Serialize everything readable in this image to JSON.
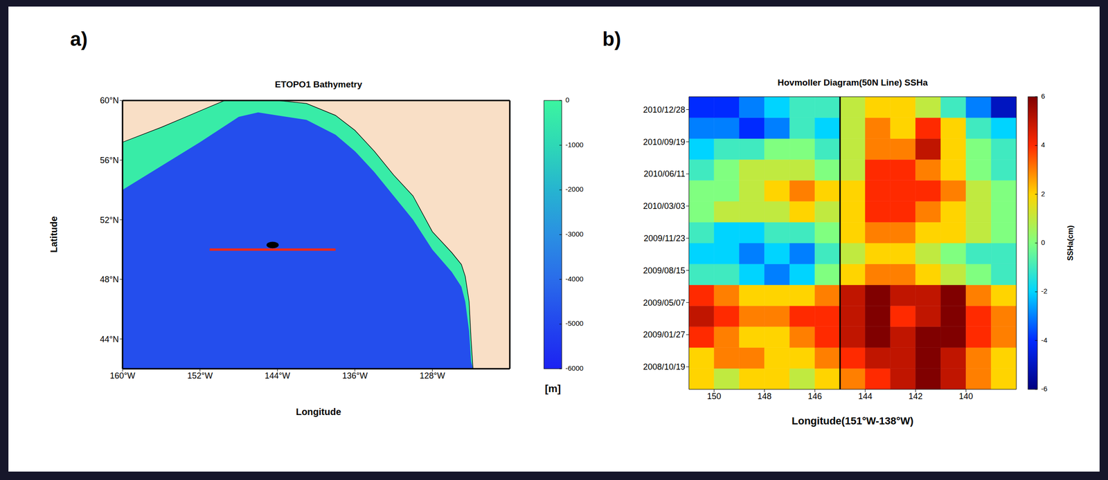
{
  "chart_data": [
    {
      "panel": "a)",
      "type": "map",
      "title": "ETOPO1 Bathymetry",
      "xlabel": "Longitude",
      "ylabel": "Latitude",
      "xlim": [
        -160,
        -120
      ],
      "ylim": [
        42,
        60
      ],
      "xticks": [
        {
          "value": -160,
          "label": "160°W"
        },
        {
          "value": -152,
          "label": "152°W"
        },
        {
          "value": -144,
          "label": "144°W"
        },
        {
          "value": -136,
          "label": "136°W"
        },
        {
          "value": -128,
          "label": "128°W"
        }
      ],
      "yticks": [
        {
          "value": 44,
          "label": "44°N"
        },
        {
          "value": 48,
          "label": "48°N"
        },
        {
          "value": 52,
          "label": "52°N"
        },
        {
          "value": 56,
          "label": "56°N"
        },
        {
          "value": 60,
          "label": "60°N"
        }
      ],
      "coast": {
        "lon": [
          -160,
          -156,
          -152,
          -148,
          -146,
          -144,
          -141,
          -138,
          -136,
          -134,
          -132,
          -130,
          -128,
          -126,
          -125,
          -124.6,
          -124.2,
          -124,
          -123.8,
          -120
        ],
        "land_lat": [
          57.2,
          58.2,
          59.3,
          60.4,
          60.4,
          60.0,
          59.8,
          59.0,
          58.0,
          56.6,
          55.0,
          53.6,
          51.2,
          49.8,
          49.0,
          48.2,
          46.5,
          44.0,
          42.0,
          42.0
        ],
        "shelf_lat": [
          54.0,
          55.6,
          57.2,
          58.9,
          59.2,
          59.0,
          58.7,
          57.7,
          56.6,
          55.2,
          53.6,
          52.0,
          50.0,
          48.5,
          47.5,
          46.5,
          44.5,
          42.5,
          42.0,
          42.0
        ]
      },
      "land_color": "#f9dfc6",
      "ocean_depth": -4800,
      "shelf_depth": -300,
      "section": {
        "lon": [
          -151,
          -138
        ],
        "lat": 50,
        "color": "#f02818"
      },
      "station": {
        "lon": -144.5,
        "lat": 50.3,
        "color": "#000000"
      },
      "colorbar": {
        "label": "[m]",
        "range": [
          -6000,
          0
        ],
        "ticks": [
          0,
          -1000,
          -2000,
          -3000,
          -4000,
          -5000,
          -6000
        ],
        "colors": [
          "#1c22f2",
          "#2246ee",
          "#2a6cea",
          "#2a90e2",
          "#26b4d0",
          "#2ed8b6",
          "#3cf5a0"
        ]
      }
    },
    {
      "panel": "b)",
      "type": "heatmap",
      "title": "Hovmoller Diagram(50N Line) SSHa",
      "xlabel": "Longitude(151°W-138°W)",
      "xlim": [
        151,
        138
      ],
      "xticks": [
        150,
        148,
        146,
        144,
        142,
        140
      ],
      "ylim": [
        "2008/08/10",
        "2011/02/06"
      ],
      "yticks": [
        "2008/10/19",
        "2009/01/27",
        "2009/05/07",
        "2009/08/15",
        "2009/11/23",
        "2010/03/03",
        "2010/06/11",
        "2010/09/19",
        "2010/12/28"
      ],
      "x_edges": [
        151,
        150,
        149,
        148,
        147,
        146,
        145,
        144,
        143,
        142,
        141,
        140,
        139,
        138
      ],
      "y_edges": [
        "2008/08/10",
        "2008/10/14",
        "2008/12/18",
        "2009/02/21",
        "2009/04/27",
        "2009/07/01",
        "2009/09/04",
        "2009/11/08",
        "2010/01/12",
        "2010/03/18",
        "2010/05/22",
        "2010/07/26",
        "2010/09/29",
        "2010/12/03",
        "2011/02/06"
      ],
      "cells": [
        [
          2,
          1,
          2,
          2,
          1,
          2,
          3,
          4,
          5,
          6,
          5,
          3,
          2
        ],
        [
          2,
          3,
          3,
          2,
          2,
          3,
          4,
          5,
          5,
          6,
          5,
          3,
          2
        ],
        [
          4,
          3,
          2,
          2,
          3,
          4,
          5,
          6,
          5,
          6,
          6,
          4,
          3
        ],
        [
          5,
          4,
          3,
          3,
          4,
          4,
          5,
          6,
          4,
          5,
          6,
          4,
          3
        ],
        [
          4,
          3,
          2,
          2,
          2,
          3,
          5,
          6,
          5,
          5,
          6,
          3,
          2
        ],
        [
          -1,
          -1,
          -2,
          -3,
          -2,
          0,
          2,
          3,
          3,
          2,
          1,
          0,
          -1
        ],
        [
          -2,
          -2,
          -3,
          -2,
          -3,
          -1,
          1,
          2,
          2,
          1,
          0,
          -1,
          -1
        ],
        [
          -1,
          -2,
          -2,
          -1,
          -1,
          0,
          2,
          3,
          3,
          2,
          2,
          1,
          0
        ],
        [
          0,
          1,
          1,
          1,
          2,
          1,
          2,
          4,
          4,
          3,
          2,
          1,
          0
        ],
        [
          0,
          0,
          1,
          2,
          3,
          2,
          2,
          4,
          4,
          4,
          3,
          1,
          0
        ],
        [
          -1,
          0,
          1,
          1,
          1,
          0,
          1,
          4,
          4,
          3,
          2,
          0,
          -1
        ],
        [
          -2,
          -1,
          -1,
          0,
          0,
          -1,
          1,
          3,
          3,
          5,
          2,
          0,
          -1
        ],
        [
          -3,
          -3,
          -4,
          -3,
          -1,
          -2,
          1,
          3,
          2,
          4,
          2,
          -1,
          -2
        ],
        [
          -4,
          -4,
          -3,
          -2,
          -1,
          -1,
          1,
          2,
          2,
          1,
          -1,
          -3,
          -5
        ]
      ],
      "station_line": {
        "x": 145,
        "color": "#000000"
      },
      "colorbar": {
        "label": "SSHa(cm)",
        "range": [
          -6,
          6
        ],
        "ticks": [
          -6,
          -4,
          -2,
          0,
          2,
          4,
          6
        ],
        "colors": [
          "#000080",
          "#002aff",
          "#00d4ff",
          "#80ff80",
          "#ffd400",
          "#ff2a00",
          "#800000"
        ]
      }
    }
  ]
}
